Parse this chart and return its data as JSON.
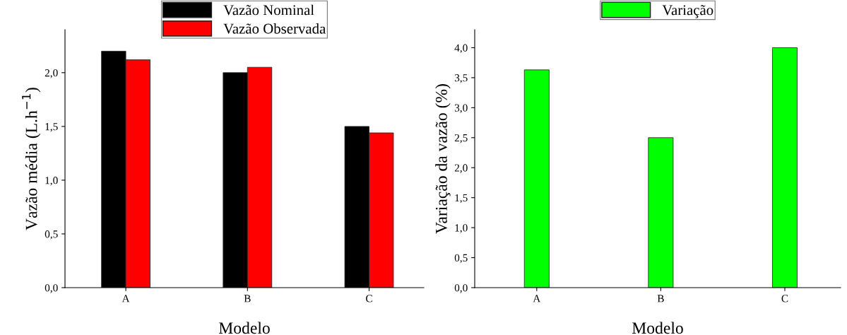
{
  "chart_data": [
    {
      "type": "bar",
      "xlabel": "Modelo",
      "ylabel": "Vazão média (L.h$^{−1}$)",
      "categories": [
        "A",
        "B",
        "C"
      ],
      "series": [
        {
          "name": "Vazão Nominal",
          "color": "#000000",
          "values": [
            2.2,
            2.0,
            1.5
          ]
        },
        {
          "name": "Vazão Observada",
          "color": "#ff0000",
          "values": [
            2.12,
            2.05,
            1.44
          ]
        }
      ],
      "ylim": [
        0,
        2.4
      ],
      "yticks": [
        {
          "value": 0,
          "label": "0,0"
        },
        {
          "value": 0.5,
          "label": "0,5"
        },
        {
          "value": 1.0,
          "label": "1,0"
        },
        {
          "value": 1.5,
          "label": "1,5"
        },
        {
          "value": 2.0,
          "label": "2,0"
        }
      ],
      "legend": "top",
      "grid": false
    },
    {
      "type": "bar",
      "xlabel": "Modelo",
      "ylabel": "Variação da vazão (%)",
      "categories": [
        "A",
        "B",
        "C"
      ],
      "series": [
        {
          "name": "Variação",
          "color": "#00ff00",
          "values": [
            3.63,
            2.5,
            4.0
          ]
        }
      ],
      "ylim": [
        0,
        4.3
      ],
      "yticks": [
        {
          "value": 0,
          "label": "0,0"
        },
        {
          "value": 0.5,
          "label": "0,5"
        },
        {
          "value": 1.0,
          "label": "1,0"
        },
        {
          "value": 1.5,
          "label": "1,5"
        },
        {
          "value": 2.0,
          "label": "2,0"
        },
        {
          "value": 2.5,
          "label": "2,5"
        },
        {
          "value": 3.0,
          "label": "3,0"
        },
        {
          "value": 3.5,
          "label": "3,5"
        },
        {
          "value": 4.0,
          "label": "4,0"
        }
      ],
      "legend": "top",
      "grid": false
    }
  ]
}
